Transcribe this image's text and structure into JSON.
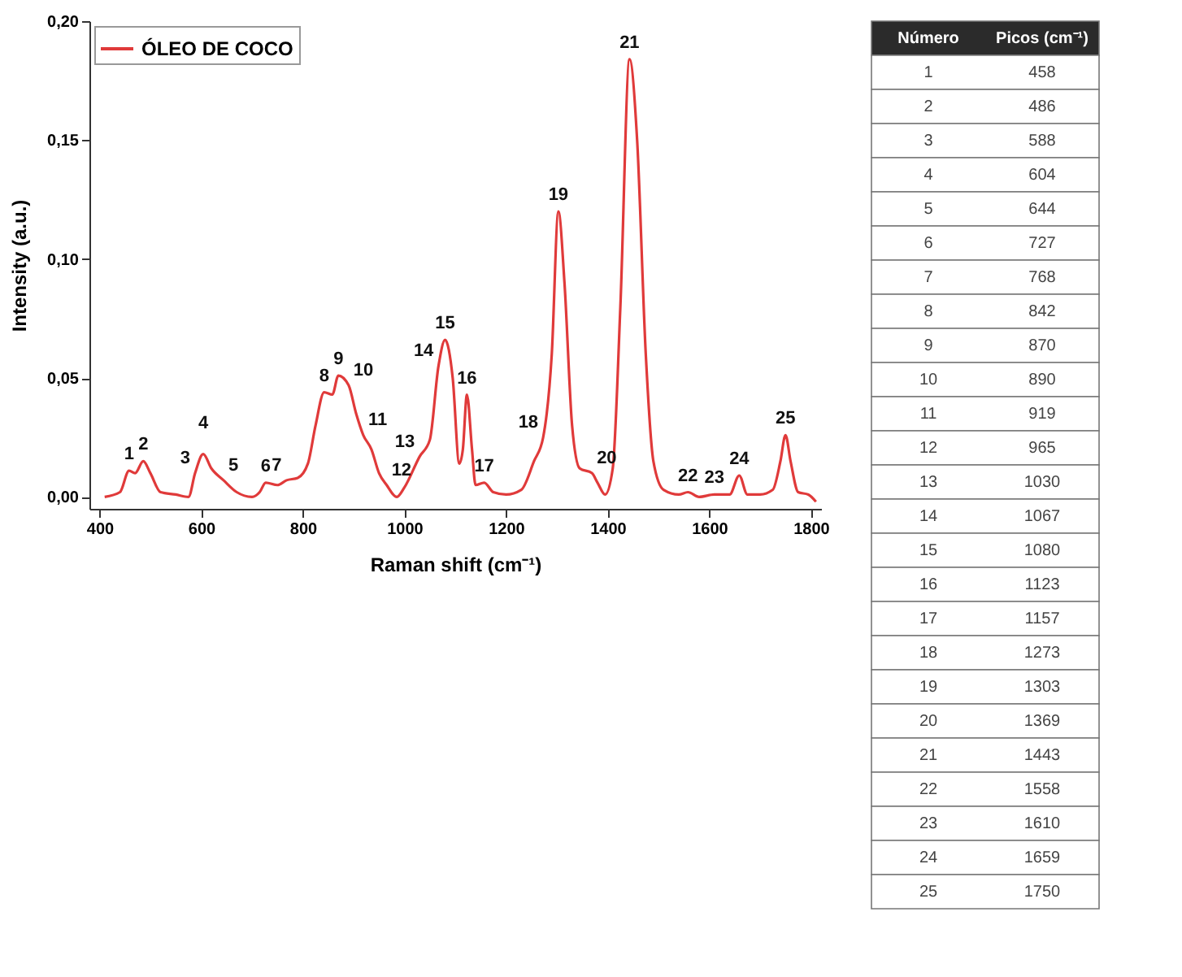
{
  "chart_data": [
    {
      "type": "line",
      "xlabel": "Raman shift (cm⁻¹)",
      "ylabel": "Intensity (a.u.)",
      "legend": "top left",
      "grid": false,
      "marker": "none",
      "line_style": "solid",
      "xlim": [
        380,
        1820
      ],
      "ylim": [
        -0.005,
        0.2
      ],
      "xticks": [
        400,
        600,
        800,
        1000,
        1200,
        1400,
        1600,
        1800
      ],
      "yticks": [
        {
          "value": 0,
          "label": "0,00"
        },
        {
          "value": 0.05,
          "label": "0,05"
        },
        {
          "value": 0.1,
          "label": "0,10"
        },
        {
          "value": 0.15,
          "label": "0,15"
        },
        {
          "value": 0.2,
          "label": "0,20"
        }
      ],
      "series": [
        {
          "name": "ÓLEO DE COCO",
          "color": "#e03a3a",
          "x": [
            410,
            440,
            458,
            470,
            486,
            500,
            520,
            550,
            575,
            588,
            604,
            620,
            644,
            670,
            700,
            715,
            727,
            750,
            768,
            790,
            810,
            825,
            842,
            858,
            870,
            890,
            905,
            919,
            935,
            950,
            965,
            985,
            1000,
            1030,
            1050,
            1067,
            1080,
            1095,
            1108,
            1115,
            1123,
            1133,
            1140,
            1157,
            1175,
            1200,
            1230,
            1255,
            1273,
            1290,
            1303,
            1315,
            1330,
            1345,
            1369,
            1380,
            1395,
            1410,
            1425,
            1443,
            1458,
            1475,
            1490,
            1510,
            1540,
            1558,
            1580,
            1610,
            1640,
            1659,
            1675,
            1700,
            1725,
            1740,
            1750,
            1760,
            1775,
            1795,
            1810
          ],
          "values": [
            0.0,
            0.002,
            0.011,
            0.01,
            0.015,
            0.01,
            0.002,
            0.001,
            0.0,
            0.01,
            0.018,
            0.012,
            0.007,
            0.002,
            0.0,
            0.002,
            0.006,
            0.005,
            0.007,
            0.008,
            0.014,
            0.03,
            0.044,
            0.043,
            0.051,
            0.047,
            0.035,
            0.026,
            0.02,
            0.01,
            0.005,
            0.0,
            0.004,
            0.017,
            0.024,
            0.055,
            0.066,
            0.05,
            0.014,
            0.02,
            0.043,
            0.02,
            0.005,
            0.006,
            0.002,
            0.001,
            0.003,
            0.015,
            0.025,
            0.06,
            0.12,
            0.09,
            0.03,
            0.012,
            0.01,
            0.006,
            0.001,
            0.012,
            0.08,
            0.184,
            0.15,
            0.06,
            0.015,
            0.003,
            0.001,
            0.002,
            0.0,
            0.001,
            0.001,
            0.009,
            0.001,
            0.001,
            0.003,
            0.015,
            0.026,
            0.015,
            0.002,
            0.001,
            -0.002
          ]
        }
      ],
      "annotations": [
        {
          "text": "1",
          "x": 458,
          "y": 0.011
        },
        {
          "text": "2",
          "x": 486,
          "y": 0.015
        },
        {
          "text": "3",
          "x": 588,
          "y": 0.01
        },
        {
          "text": "4",
          "x": 604,
          "y": 0.018
        },
        {
          "text": "5",
          "x": 644,
          "y": 0.007
        },
        {
          "text": "6",
          "x": 727,
          "y": 0.006
        },
        {
          "text": "7",
          "x": 768,
          "y": 0.007
        },
        {
          "text": "8",
          "x": 842,
          "y": 0.044
        },
        {
          "text": "9",
          "x": 870,
          "y": 0.051
        },
        {
          "text": "10",
          "x": 890,
          "y": 0.047
        },
        {
          "text": "11",
          "x": 919,
          "y": 0.026
        },
        {
          "text": "12",
          "x": 965,
          "y": 0.005
        },
        {
          "text": "13",
          "x": 1030,
          "y": 0.017
        },
        {
          "text": "14",
          "x": 1067,
          "y": 0.055
        },
        {
          "text": "15",
          "x": 1080,
          "y": 0.066
        },
        {
          "text": "16",
          "x": 1123,
          "y": 0.043
        },
        {
          "text": "17",
          "x": 1157,
          "y": 0.006
        },
        {
          "text": "18",
          "x": 1273,
          "y": 0.025
        },
        {
          "text": "19",
          "x": 1303,
          "y": 0.12
        },
        {
          "text": "20",
          "x": 1369,
          "y": 0.01
        },
        {
          "text": "21",
          "x": 1443,
          "y": 0.184
        },
        {
          "text": "22",
          "x": 1558,
          "y": 0.002
        },
        {
          "text": "23",
          "x": 1610,
          "y": 0.001
        },
        {
          "text": "24",
          "x": 1659,
          "y": 0.009
        },
        {
          "text": "25",
          "x": 1750,
          "y": 0.026
        }
      ]
    },
    {
      "type": "heatmap",
      "ylabel": "Número",
      "categories": [
        "Picos (cm⁻¹)"
      ],
      "data_labels": true,
      "y_categories": [
        "1",
        "2",
        "3",
        "4",
        "5",
        "6",
        "7",
        "8",
        "9",
        "10",
        "11",
        "12",
        "13",
        "14",
        "15",
        "16",
        "17",
        "18",
        "19",
        "20",
        "21",
        "22",
        "23",
        "24",
        "25"
      ],
      "cells": [
        [
          458
        ],
        [
          486
        ],
        [
          588
        ],
        [
          604
        ],
        [
          644
        ],
        [
          727
        ],
        [
          768
        ],
        [
          842
        ],
        [
          870
        ],
        [
          890
        ],
        [
          919
        ],
        [
          965
        ],
        [
          1030
        ],
        [
          1067
        ],
        [
          1080
        ],
        [
          1123
        ],
        [
          1157
        ],
        [
          1273
        ],
        [
          1303
        ],
        [
          1369
        ],
        [
          1443
        ],
        [
          1558
        ],
        [
          1610
        ],
        [
          1659
        ],
        [
          1750
        ]
      ]
    }
  ]
}
